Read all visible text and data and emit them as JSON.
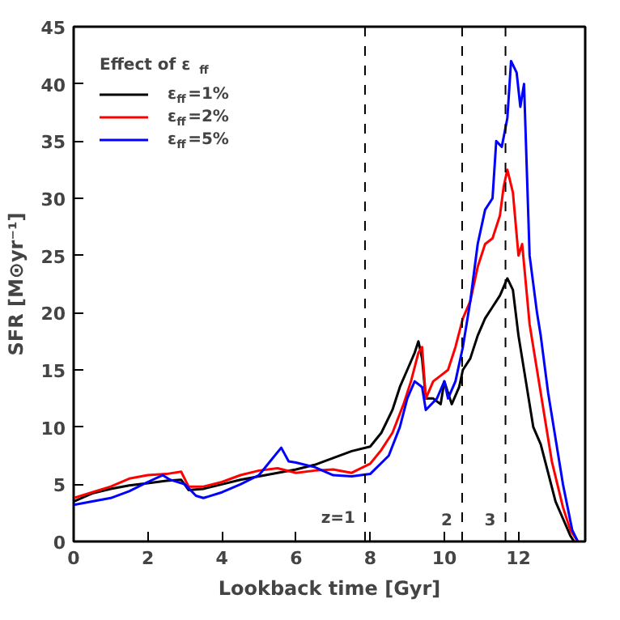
{
  "chart_data": {
    "type": "line",
    "xlabel": "Lookback time [Gyr]",
    "ylabel": "SFR [M⊙yr⁻¹]",
    "legend_title": "Effect of ε$_{ff}$",
    "legend": "top left",
    "grid": false,
    "xlim": [
      0,
      13.8
    ],
    "xticks": [
      0,
      2,
      4,
      6,
      8,
      10,
      12
    ],
    "ylim": [
      0,
      45
    ],
    "yticks": [
      0,
      5,
      10,
      15,
      20,
      25,
      30,
      35,
      40,
      45
    ],
    "ref_lines": [
      {
        "axis": "x",
        "value": 7.86,
        "line_style": "dashed",
        "color": "#000000"
      },
      {
        "axis": "x",
        "value": 10.48,
        "line_style": "dashed",
        "color": "#000000"
      },
      {
        "axis": "x",
        "value": 11.65,
        "line_style": "dashed",
        "color": "#000000"
      }
    ],
    "annotations": [
      "z=1",
      "2",
      "3"
    ],
    "series": [
      {
        "name": "ε$_{ff}$=1%",
        "color": "#000000",
        "x": [
          0,
          0.5,
          1,
          1.5,
          2,
          2.5,
          2.9,
          3.1,
          3.5,
          4,
          4.5,
          5,
          5.5,
          6,
          6.5,
          7,
          7.5,
          8,
          8.3,
          8.6,
          8.8,
          9,
          9.2,
          9.3,
          9.4,
          9.5,
          9.7,
          9.9,
          10.0,
          10.2,
          10.4,
          10.5,
          10.7,
          10.9,
          11.1,
          11.3,
          11.5,
          11.7,
          11.85,
          12.0,
          12.2,
          12.4,
          12.6,
          12.8,
          13.0,
          13.2,
          13.4,
          13.5
        ],
        "values": [
          3.5,
          4.2,
          4.6,
          4.9,
          5.1,
          5.3,
          5.4,
          4.5,
          4.6,
          5.0,
          5.4,
          5.7,
          6.0,
          6.3,
          6.7,
          7.3,
          7.9,
          8.3,
          9.5,
          11.5,
          13.5,
          15,
          16.5,
          17.5,
          16,
          12.5,
          12.5,
          12.0,
          14,
          12,
          13.5,
          15,
          16,
          18,
          19.5,
          20.5,
          21.5,
          23,
          22,
          18,
          14,
          10,
          8.5,
          6,
          3.5,
          2,
          0.5,
          0
        ]
      },
      {
        "name": "ε$_{ff}$=2%",
        "color": "#ff0000",
        "x": [
          0,
          0.5,
          1,
          1.5,
          2,
          2.5,
          2.9,
          3.1,
          3.5,
          4,
          4.5,
          5,
          5.5,
          6,
          6.5,
          7,
          7.5,
          8,
          8.3,
          8.6,
          8.9,
          9.1,
          9.3,
          9.4,
          9.5,
          9.7,
          9.9,
          10.1,
          10.3,
          10.5,
          10.7,
          10.9,
          11.1,
          11.3,
          11.5,
          11.6,
          11.7,
          11.85,
          12.0,
          12.1,
          12.3,
          12.6,
          12.9,
          13.2,
          13.4,
          13.6
        ],
        "values": [
          3.8,
          4.3,
          4.8,
          5.5,
          5.8,
          5.9,
          6.1,
          4.8,
          4.8,
          5.2,
          5.8,
          6.2,
          6.4,
          6.0,
          6.2,
          6.3,
          6.0,
          6.8,
          8,
          9.5,
          12,
          14,
          16.5,
          17.0,
          12.5,
          14.0,
          14.5,
          15,
          17,
          19.5,
          21,
          24,
          26,
          26.5,
          28.5,
          31,
          32.5,
          30.5,
          25,
          26,
          19,
          13,
          7,
          3,
          1,
          0
        ]
      },
      {
        "name": "ε$_{ff}$=5%",
        "color": "#0000ff",
        "x": [
          0,
          0.5,
          1,
          1.5,
          2,
          2.4,
          2.6,
          3,
          3.3,
          3.5,
          4,
          4.5,
          5,
          5.3,
          5.6,
          5.8,
          6,
          6.5,
          7,
          7.5,
          8,
          8.5,
          8.8,
          9.0,
          9.2,
          9.4,
          9.5,
          9.8,
          10,
          10.1,
          10.3,
          10.5,
          10.7,
          10.9,
          11.1,
          11.3,
          11.4,
          11.55,
          11.7,
          11.8,
          11.95,
          12.05,
          12.15,
          12.3,
          12.5,
          12.6,
          12.8,
          13,
          13.2,
          13.45,
          13.6
        ],
        "values": [
          3.2,
          3.5,
          3.8,
          4.4,
          5.2,
          5.8,
          5.4,
          5.0,
          4.0,
          3.8,
          4.3,
          5.0,
          5.8,
          7.0,
          8.2,
          7.0,
          6.9,
          6.5,
          5.8,
          5.7,
          5.9,
          7.5,
          10,
          12.5,
          14,
          13.5,
          11.5,
          12.5,
          14,
          12.5,
          14,
          17,
          21,
          26,
          29,
          30,
          35,
          34.5,
          37,
          42,
          41,
          38,
          40,
          25,
          20,
          18,
          13,
          9,
          5,
          1,
          0
        ]
      }
    ]
  }
}
